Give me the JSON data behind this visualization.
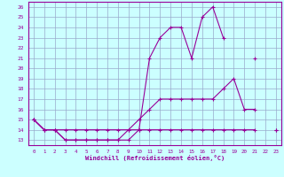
{
  "xlabel": "Windchill (Refroidissement éolien,°C)",
  "x_values": [
    0,
    1,
    2,
    3,
    4,
    5,
    6,
    7,
    8,
    9,
    10,
    11,
    12,
    13,
    14,
    15,
    16,
    17,
    18,
    19,
    20,
    21,
    22,
    23
  ],
  "line1": [
    15,
    14,
    14,
    13,
    13,
    13,
    13,
    13,
    13,
    13,
    14,
    14,
    14,
    14,
    14,
    14,
    14,
    14,
    14,
    14,
    14,
    14,
    null,
    14
  ],
  "line2": [
    15,
    14,
    14,
    14,
    14,
    14,
    14,
    14,
    14,
    14,
    15,
    16,
    17,
    17,
    17,
    17,
    17,
    17,
    18,
    19,
    16,
    16,
    null,
    14
  ],
  "line3": [
    15,
    14,
    14,
    13,
    13,
    13,
    13,
    13,
    13,
    14,
    14,
    21,
    23,
    24,
    24,
    21,
    25,
    26,
    23,
    null,
    null,
    21,
    null,
    null
  ],
  "line_color": "#990099",
  "bg_color": "#ccffff",
  "grid_color": "#99aacc",
  "ylim": [
    13,
    26
  ],
  "xlim": [
    0,
    23
  ],
  "yticks": [
    13,
    14,
    15,
    16,
    17,
    18,
    19,
    20,
    21,
    22,
    23,
    24,
    25,
    26
  ],
  "xticks": [
    0,
    1,
    2,
    3,
    4,
    5,
    6,
    7,
    8,
    9,
    10,
    11,
    12,
    13,
    14,
    15,
    16,
    17,
    18,
    19,
    20,
    21,
    22,
    23
  ]
}
